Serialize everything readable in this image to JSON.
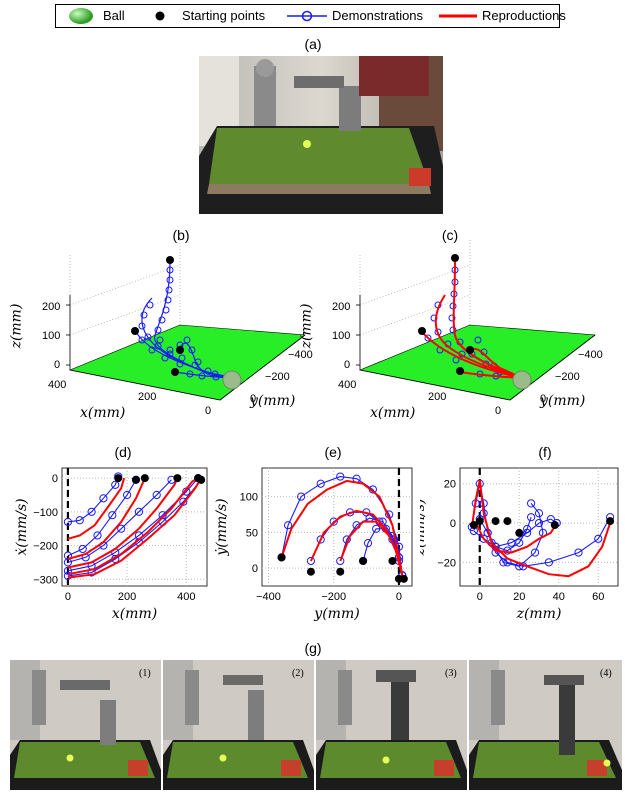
{
  "legend": {
    "ball": "Ball",
    "starting_points": "Starting points",
    "demonstrations": "Demonstrations",
    "reproductions": "Reproductions"
  },
  "panels": {
    "a": "(a)",
    "b": "(b)",
    "c": "(c)",
    "d": "(d)",
    "e": "(e)",
    "f": "(f)",
    "g": "(g)"
  },
  "plot3d": {
    "z_label": "z(mm)",
    "x_label": "x(mm)",
    "y_label": "y(mm)",
    "z_ticks": [
      "200",
      "100",
      "0"
    ],
    "x_ticks": [
      "400",
      "200",
      "0"
    ],
    "y_ticks": [
      "−400",
      "−200",
      "0"
    ]
  },
  "chart_data": [
    {
      "type": "line",
      "panel": "(d)",
      "xlabel": "x(mm)",
      "ylabel": "ẋ(mm/s)",
      "xticks": [
        "0",
        "200",
        "400"
      ],
      "yticks": [
        "0",
        "−100",
        "−200",
        "−300"
      ],
      "xlim": [
        -20,
        470
      ],
      "ylim": [
        -320,
        30
      ],
      "series": [
        {
          "kind": "demonstration",
          "points": [
            [
              0,
              -130
            ],
            [
              40,
              -125
            ],
            [
              80,
              -100
            ],
            [
              120,
              -60
            ],
            [
              160,
              -20
            ],
            [
              170,
              5
            ]
          ]
        },
        {
          "kind": "demonstration",
          "points": [
            [
              0,
              -230
            ],
            [
              50,
              -210
            ],
            [
              100,
              -170
            ],
            [
              150,
              -110
            ],
            [
              200,
              -50
            ],
            [
              230,
              -5
            ]
          ]
        },
        {
          "kind": "demonstration",
          "points": [
            [
              0,
              -250
            ],
            [
              60,
              -235
            ],
            [
              120,
              -200
            ],
            [
              180,
              -150
            ],
            [
              240,
              -100
            ],
            [
              300,
              -50
            ],
            [
              350,
              -5
            ]
          ]
        },
        {
          "kind": "demonstration",
          "points": [
            [
              0,
              -275
            ],
            [
              80,
              -260
            ],
            [
              160,
              -220
            ],
            [
              240,
              -170
            ],
            [
              320,
              -110
            ],
            [
              400,
              -40
            ],
            [
              440,
              0
            ]
          ]
        },
        {
          "kind": "demonstration",
          "points": [
            [
              0,
              -290
            ],
            [
              80,
              -280
            ],
            [
              160,
              -240
            ],
            [
              240,
              -190
            ],
            [
              320,
              -130
            ],
            [
              390,
              -70
            ],
            [
              450,
              -5
            ]
          ]
        },
        {
          "kind": "reproduction",
          "points": [
            [
              0,
              -180
            ],
            [
              40,
              -170
            ],
            [
              90,
              -140
            ],
            [
              140,
              -80
            ],
            [
              180,
              -30
            ],
            [
              190,
              0
            ]
          ]
        },
        {
          "kind": "reproduction",
          "points": [
            [
              0,
              -240
            ],
            [
              60,
              -225
            ],
            [
              120,
              -190
            ],
            [
              180,
              -130
            ],
            [
              230,
              -60
            ],
            [
              260,
              0
            ]
          ]
        },
        {
          "kind": "reproduction",
          "points": [
            [
              0,
              -265
            ],
            [
              80,
              -250
            ],
            [
              160,
              -210
            ],
            [
              240,
              -150
            ],
            [
              300,
              -90
            ],
            [
              360,
              -20
            ],
            [
              370,
              0
            ]
          ]
        },
        {
          "kind": "reproduction",
          "points": [
            [
              0,
              -285
            ],
            [
              90,
              -270
            ],
            [
              180,
              -225
            ],
            [
              270,
              -160
            ],
            [
              350,
              -90
            ],
            [
              420,
              -10
            ],
            [
              440,
              0
            ]
          ]
        },
        {
          "kind": "reproduction",
          "points": [
            [
              0,
              -295
            ],
            [
              90,
              -285
            ],
            [
              180,
              -245
            ],
            [
              270,
              -180
            ],
            [
              360,
              -110
            ],
            [
              430,
              -30
            ],
            [
              450,
              0
            ]
          ]
        }
      ],
      "starting_points": [
        [
          170,
          0
        ],
        [
          230,
          -5
        ],
        [
          260,
          0
        ],
        [
          370,
          0
        ],
        [
          440,
          0
        ],
        [
          450,
          -5
        ]
      ]
    },
    {
      "type": "line",
      "panel": "(e)",
      "xlabel": "y(mm)",
      "ylabel": "ẏ(mm/s)",
      "xticks": [
        "−400",
        "−200",
        "0"
      ],
      "yticks": [
        "100",
        "50",
        "0"
      ],
      "xlim": [
        -420,
        40
      ],
      "ylim": [
        -25,
        140
      ],
      "series": [
        {
          "kind": "demonstration",
          "points": [
            [
              -360,
              15
            ],
            [
              -340,
              60
            ],
            [
              -300,
              100
            ],
            [
              -240,
              118
            ],
            [
              -180,
              128
            ],
            [
              -130,
              125
            ],
            [
              -80,
              110
            ],
            [
              -30,
              75
            ],
            [
              0,
              30
            ],
            [
              10,
              -10
            ]
          ]
        },
        {
          "kind": "demonstration",
          "points": [
            [
              -270,
              10
            ],
            [
              -240,
              40
            ],
            [
              -200,
              65
            ],
            [
              -150,
              78
            ],
            [
              -100,
              78
            ],
            [
              -60,
              65
            ],
            [
              -20,
              40
            ],
            [
              0,
              10
            ],
            [
              10,
              -10
            ]
          ]
        },
        {
          "kind": "demonstration",
          "points": [
            [
              -180,
              10
            ],
            [
              -160,
              40
            ],
            [
              -130,
              60
            ],
            [
              -90,
              70
            ],
            [
              -50,
              65
            ],
            [
              -20,
              45
            ],
            [
              0,
              15
            ],
            [
              10,
              -10
            ]
          ]
        },
        {
          "kind": "demonstration",
          "points": [
            [
              -110,
              10
            ],
            [
              -95,
              35
            ],
            [
              -70,
              55
            ],
            [
              -40,
              55
            ],
            [
              -15,
              40
            ],
            [
              0,
              15
            ],
            [
              10,
              -10
            ]
          ]
        },
        {
          "kind": "reproduction",
          "points": [
            [
              -360,
              15
            ],
            [
              -330,
              55
            ],
            [
              -280,
              90
            ],
            [
              -220,
              110
            ],
            [
              -160,
              122
            ],
            [
              -110,
              118
            ],
            [
              -60,
              100
            ],
            [
              -20,
              60
            ],
            [
              0,
              15
            ],
            [
              10,
              -10
            ]
          ]
        },
        {
          "kind": "reproduction",
          "points": [
            [
              -270,
              10
            ],
            [
              -230,
              50
            ],
            [
              -180,
              72
            ],
            [
              -130,
              80
            ],
            [
              -80,
              75
            ],
            [
              -40,
              55
            ],
            [
              -10,
              25
            ],
            [
              10,
              -10
            ]
          ]
        },
        {
          "kind": "reproduction",
          "points": [
            [
              -180,
              10
            ],
            [
              -150,
              45
            ],
            [
              -110,
              65
            ],
            [
              -70,
              65
            ],
            [
              -30,
              45
            ],
            [
              0,
              15
            ],
            [
              10,
              -10
            ]
          ]
        }
      ],
      "starting_points": [
        [
          -360,
          15
        ],
        [
          -270,
          -5
        ],
        [
          -180,
          -5
        ],
        [
          -110,
          10
        ],
        [
          -20,
          10
        ],
        [
          0,
          -15
        ],
        [
          15,
          -15
        ]
      ]
    },
    {
      "type": "line",
      "panel": "(f)",
      "xlabel": "z(mm)",
      "ylabel": "ż(mm/s)",
      "xticks": [
        "0",
        "20",
        "40",
        "60"
      ],
      "yticks": [
        "20",
        "0",
        "−20"
      ],
      "xlim": [
        -10,
        70
      ],
      "ylim": [
        -32,
        28
      ],
      "series": [
        {
          "kind": "demonstration",
          "points": [
            [
              -4,
              -2
            ],
            [
              -2,
              10
            ],
            [
              0,
              20
            ],
            [
              2,
              10
            ],
            [
              4,
              -5
            ],
            [
              8,
              -15
            ],
            [
              14,
              -20
            ],
            [
              22,
              -22
            ],
            [
              35,
              -20
            ],
            [
              50,
              -15
            ],
            [
              60,
              -8
            ],
            [
              66,
              3
            ]
          ]
        },
        {
          "kind": "demonstration",
          "points": [
            [
              0,
              2
            ],
            [
              4,
              -5
            ],
            [
              8,
              -12
            ],
            [
              14,
              -14
            ],
            [
              20,
              -10
            ],
            [
              24,
              -3
            ],
            [
              26,
              3
            ]
          ]
        },
        {
          "kind": "demonstration",
          "points": [
            [
              -3,
              -4
            ],
            [
              2,
              -8
            ],
            [
              8,
              -12
            ],
            [
              16,
              -10
            ],
            [
              24,
              -5
            ],
            [
              30,
              0
            ],
            [
              36,
              2
            ],
            [
              39,
              0
            ]
          ]
        },
        {
          "kind": "demonstration",
          "points": [
            [
              2,
              5
            ],
            [
              6,
              -10
            ],
            [
              12,
              -20
            ],
            [
              20,
              -22
            ],
            [
              28,
              -15
            ],
            [
              32,
              -5
            ],
            [
              30,
              5
            ],
            [
              26,
              10
            ]
          ]
        },
        {
          "kind": "reproduction",
          "points": [
            [
              -4,
              -2
            ],
            [
              -2,
              12
            ],
            [
              0,
              22
            ],
            [
              2,
              5
            ],
            [
              6,
              -10
            ],
            [
              14,
              -18
            ],
            [
              24,
              -22
            ],
            [
              35,
              -26
            ],
            [
              45,
              -27
            ],
            [
              55,
              -22
            ],
            [
              62,
              -12
            ],
            [
              66,
              0
            ]
          ]
        },
        {
          "kind": "reproduction",
          "points": [
            [
              -2,
              0
            ],
            [
              2,
              -8
            ],
            [
              8,
              -14
            ],
            [
              16,
              -15
            ],
            [
              24,
              -12
            ],
            [
              30,
              -8
            ],
            [
              36,
              -5
            ],
            [
              39,
              0
            ]
          ]
        }
      ],
      "starting_points": [
        [
          -3,
          -1
        ],
        [
          0,
          1
        ],
        [
          8,
          1
        ],
        [
          14,
          1
        ],
        [
          20,
          -5
        ],
        [
          38,
          -1
        ],
        [
          66,
          1
        ]
      ]
    }
  ],
  "photo_g": {
    "frames": [
      "(1)",
      "(2)",
      "(3)",
      "(4)"
    ]
  },
  "colors": {
    "demo": "#1a1aff",
    "repro": "#ff0000",
    "ground": "#22ee22",
    "start": "#000000"
  }
}
